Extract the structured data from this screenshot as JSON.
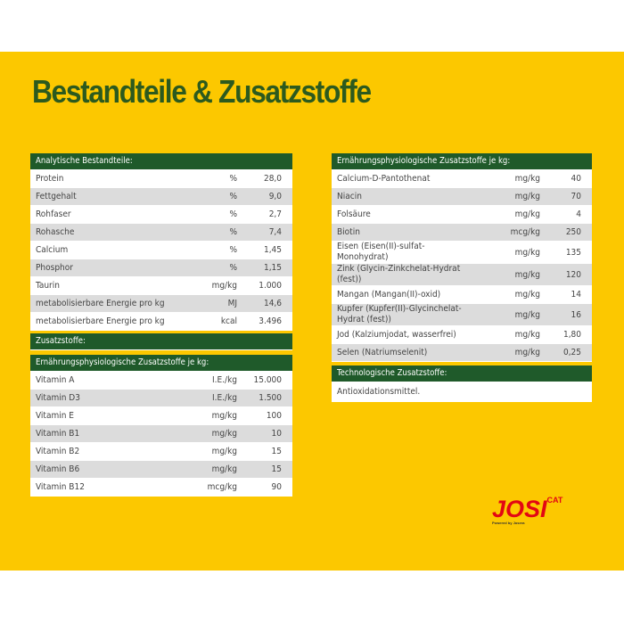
{
  "header": {
    "title": "Bestandteile & Zusatzstoffe"
  },
  "tables": [
    {
      "title": "Analytische Bestandteile:",
      "rows": [
        [
          "Protein",
          "%",
          "28,0"
        ],
        [
          "Fettgehalt",
          "%",
          "9,0"
        ],
        [
          "Rohfaser",
          "%",
          "2,7"
        ],
        [
          "Rohasche",
          "%",
          "7,4"
        ],
        [
          "Calcium",
          "%",
          "1,45"
        ],
        [
          "Phosphor",
          "%",
          "1,15"
        ],
        [
          "Taurin",
          "mg/kg",
          "1.000"
        ],
        [
          "metabolisierbare Energie pro kg",
          "MJ",
          "14,6"
        ],
        [
          "metabolisierbare Energie pro kg",
          "kcal",
          "3.496"
        ]
      ]
    },
    {
      "title": "Zusatzstoffe:",
      "subtitle": "Ernährungsphysiologische Zusatzstoffe je kg:",
      "rows": [
        [
          "Vitamin A",
          "I.E./kg",
          "15.000"
        ],
        [
          "Vitamin D3",
          "I.E./kg",
          "1.500"
        ],
        [
          "Vitamin E",
          "mg/kg",
          "100"
        ],
        [
          "Vitamin B1",
          "mg/kg",
          "10"
        ],
        [
          "Vitamin B2",
          "mg/kg",
          "15"
        ],
        [
          "Vitamin B6",
          "mg/kg",
          "15"
        ],
        [
          "Vitamin B12",
          "mcg/kg",
          "90"
        ]
      ]
    },
    {
      "title": "Ernährungsphysiologische Zusatzstoffe je kg:",
      "rows": [
        [
          "Calcium-D-Pantothenat",
          "mg/kg",
          "40"
        ],
        [
          "Niacin",
          "mg/kg",
          "70"
        ],
        [
          "Folsäure",
          "mg/kg",
          "4"
        ],
        [
          "Biotin",
          "mcg/kg",
          "250"
        ],
        [
          "Eisen (Eisen(II)-sulfat-Monohydrat)",
          "mg/kg",
          "135"
        ],
        [
          "Zink (Glycin-Zinkchelat-Hydrat (fest))",
          "mg/kg",
          "120"
        ],
        [
          "Mangan (Mangan(II)-oxid)",
          "mg/kg",
          "14"
        ],
        [
          "Kupfer (Kupfer(II)-Glycinchelat-Hydrat (fest))",
          "mg/kg",
          "16"
        ],
        [
          "Jod (Kalziumjodat, wasserfrei)",
          "mg/kg",
          "1,80"
        ],
        [
          "Selen (Natriumselenit)",
          "mg/kg",
          "0,25"
        ]
      ]
    },
    {
      "title": "Technologische Zusatzstoffe:",
      "rows": [
        [
          "Antioxidationsmittel."
        ]
      ]
    }
  ],
  "logo": {
    "name": "JOSI",
    "sub": "CAT",
    "tagline": "Powered by Josera"
  }
}
